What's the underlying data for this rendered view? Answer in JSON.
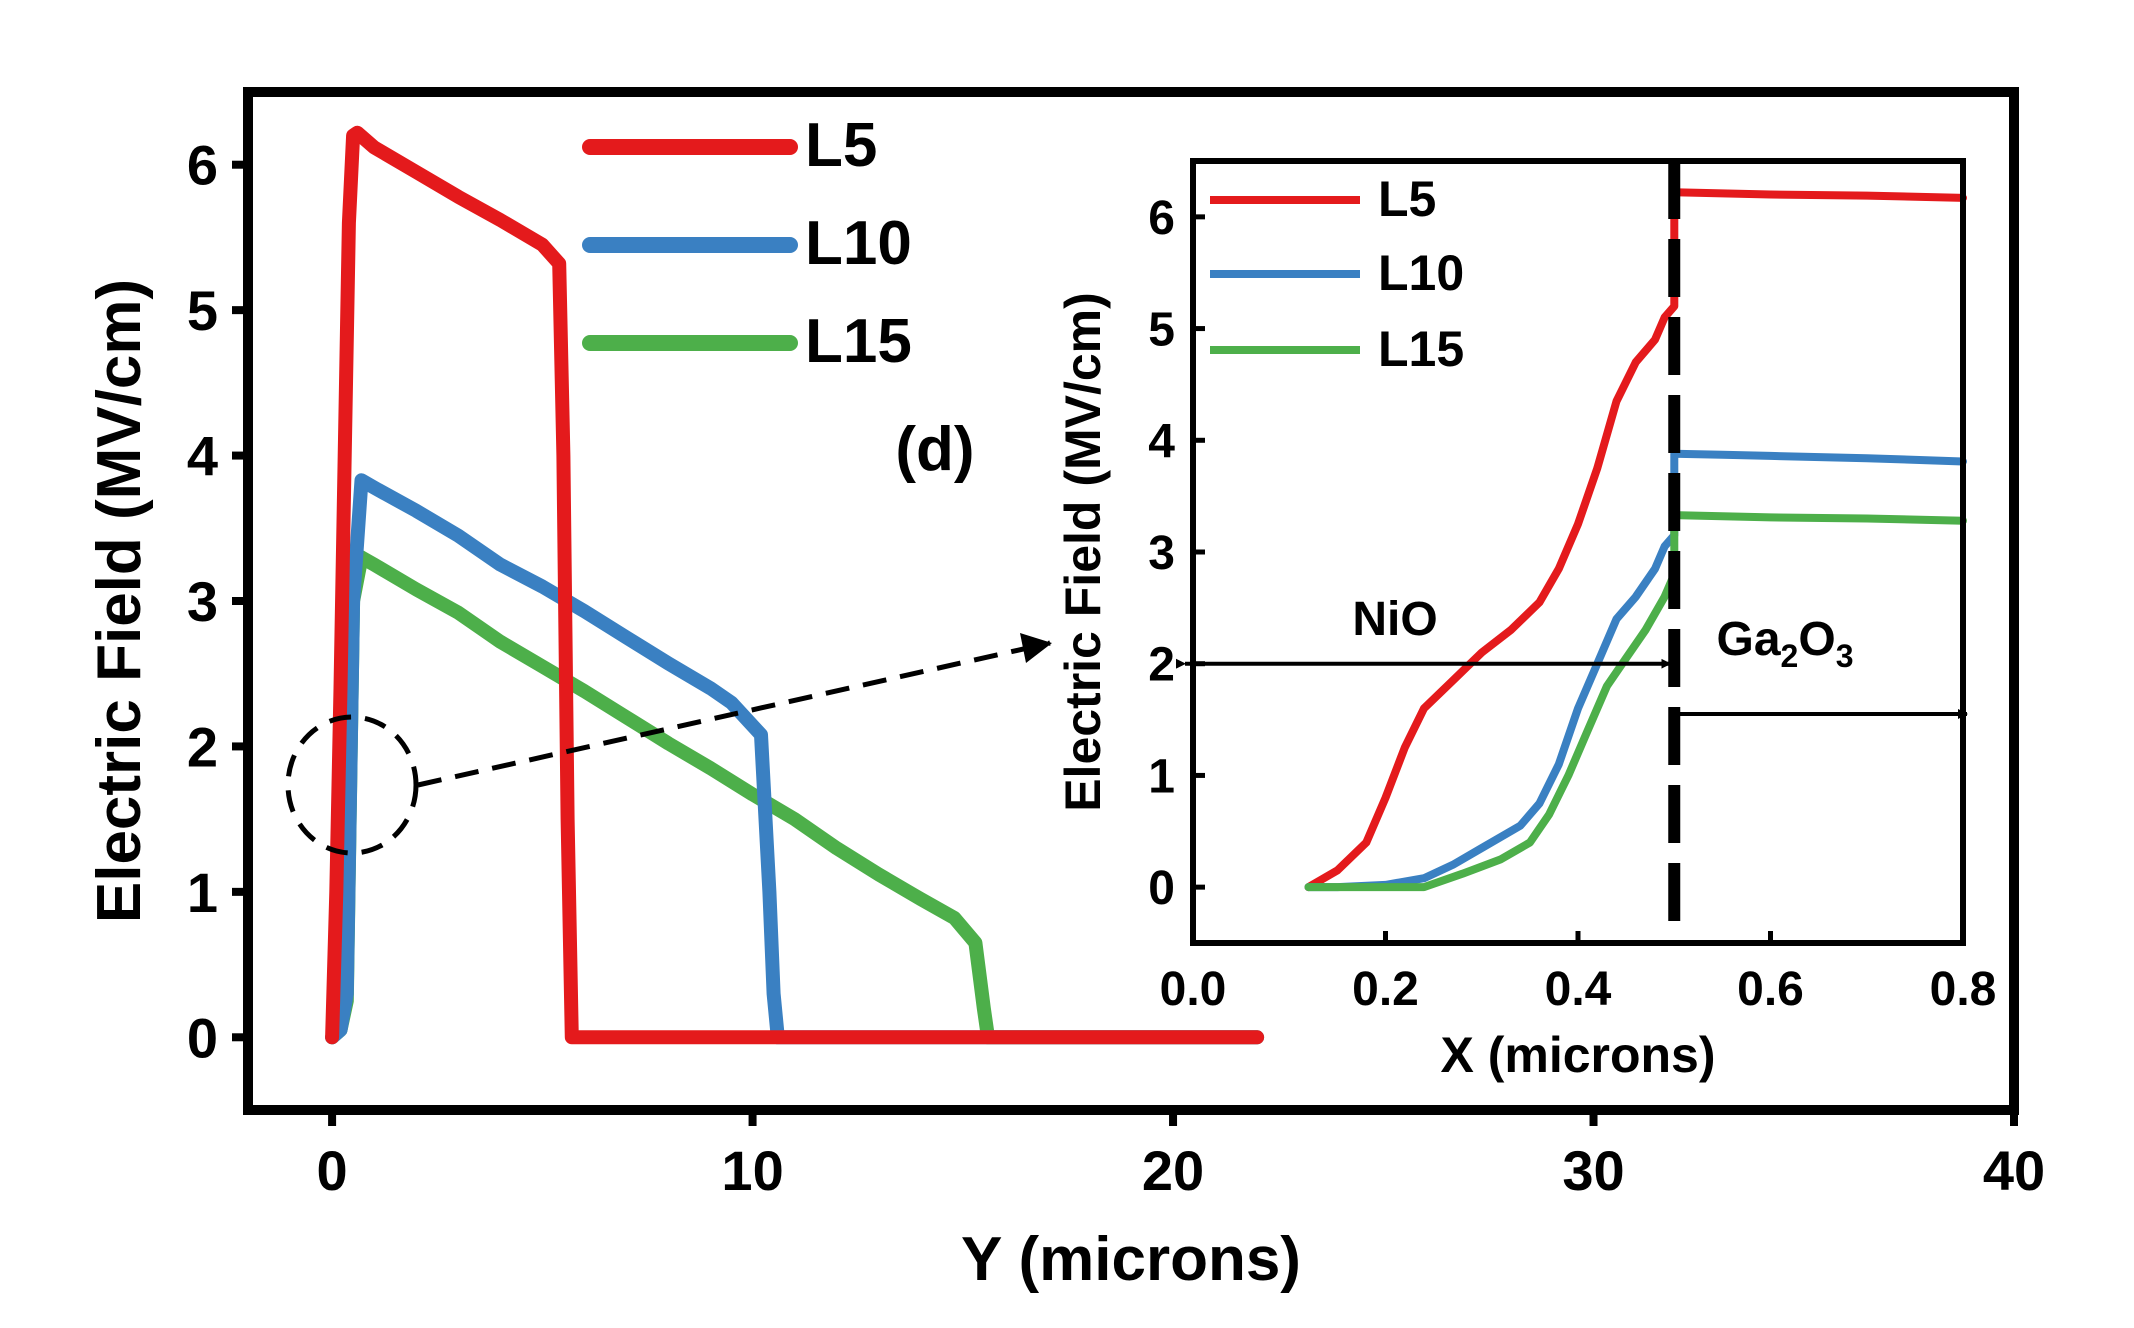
{
  "chart_data": [
    {
      "type": "line",
      "panel_label": "(d)",
      "xlabel": "Y (microns)",
      "ylabel": "Electric Field (MV/cm)",
      "xlim": [
        -2,
        40
      ],
      "ylim": [
        -0.5,
        6.5
      ],
      "xticks": [
        0,
        10,
        20,
        30,
        40
      ],
      "yticks": [
        0,
        1,
        2,
        3,
        4,
        5,
        6
      ],
      "legend_position": "top-center",
      "series": [
        {
          "name": "L5",
          "color": "#e41a1c",
          "x": [
            0.0,
            0.1,
            0.2,
            0.3,
            0.4,
            0.5,
            0.6,
            1.0,
            2.0,
            3.0,
            4.0,
            5.0,
            5.4,
            5.5,
            5.6,
            5.7,
            6.0,
            10.0,
            15.0,
            20.0,
            22.0
          ],
          "y": [
            0.0,
            1.0,
            2.4,
            4.0,
            5.6,
            6.2,
            6.22,
            6.12,
            5.95,
            5.78,
            5.62,
            5.45,
            5.32,
            4.0,
            1.5,
            0.0,
            0.0,
            0.0,
            0.0,
            0.0,
            0.0
          ]
        },
        {
          "name": "L10",
          "color": "#3a80c2",
          "x": [
            0.0,
            0.2,
            0.35,
            0.5,
            0.7,
            1.0,
            2.0,
            3.0,
            4.0,
            5.0,
            6.0,
            7.0,
            8.0,
            9.0,
            9.5,
            10.2,
            10.4,
            10.5,
            10.6,
            10.8,
            12.0,
            15.0,
            20.0,
            22.0
          ],
          "y": [
            0.0,
            0.05,
            0.3,
            3.0,
            3.83,
            3.78,
            3.62,
            3.45,
            3.25,
            3.1,
            2.93,
            2.75,
            2.57,
            2.4,
            2.3,
            2.08,
            1.0,
            0.3,
            0.0,
            0.0,
            0.0,
            0.0,
            0.0,
            0.0
          ]
        },
        {
          "name": "L15",
          "color": "#4daf4a",
          "x": [
            0.0,
            0.2,
            0.35,
            0.5,
            0.7,
            1.0,
            2.0,
            3.0,
            4.0,
            5.0,
            6.0,
            7.0,
            8.0,
            9.0,
            10.0,
            11.0,
            12.0,
            13.0,
            14.0,
            14.8,
            15.3,
            15.5,
            15.6,
            15.8,
            17.0,
            20.0,
            22.0
          ],
          "y": [
            0.0,
            0.05,
            0.25,
            3.0,
            3.3,
            3.25,
            3.08,
            2.92,
            2.72,
            2.55,
            2.38,
            2.2,
            2.02,
            1.85,
            1.67,
            1.5,
            1.3,
            1.12,
            0.95,
            0.82,
            0.65,
            0.2,
            0.0,
            0.0,
            0.0,
            0.0,
            0.0
          ]
        }
      ],
      "annotation": {
        "type": "dashed-ellipse-arrow",
        "points_to": "inset",
        "center": [
          0.5,
          1.75
        ]
      }
    },
    {
      "type": "line",
      "role": "inset",
      "xlabel": "X (microns)",
      "ylabel": "Electric Field (MV/cm)",
      "xlim": [
        0.0,
        0.8
      ],
      "ylim": [
        -0.5,
        6.5
      ],
      "xticks": [
        "0.0",
        "0.2",
        "0.4",
        "0.6",
        "0.8"
      ],
      "yticks": [
        0,
        1,
        2,
        3,
        4,
        5,
        6
      ],
      "legend_position": "top-left",
      "interface_x": 0.5,
      "region_labels": [
        {
          "text": "NiO",
          "span": [
            0.0,
            0.5
          ],
          "y": 2.0
        },
        {
          "text_main": "Ga",
          "sub1": "2",
          "text_mid": "O",
          "sub2": "3",
          "span": [
            0.5,
            0.8
          ],
          "y": 1.55
        }
      ],
      "series": [
        {
          "name": "L5",
          "color": "#e41a1c",
          "x": [
            0.12,
            0.15,
            0.18,
            0.2,
            0.22,
            0.24,
            0.27,
            0.3,
            0.33,
            0.36,
            0.38,
            0.4,
            0.42,
            0.44,
            0.46,
            0.48,
            0.49,
            0.5,
            0.5,
            0.55,
            0.6,
            0.7,
            0.8
          ],
          "y": [
            0.0,
            0.15,
            0.4,
            0.8,
            1.25,
            1.6,
            1.85,
            2.1,
            2.3,
            2.55,
            2.85,
            3.25,
            3.75,
            4.35,
            4.7,
            4.9,
            5.1,
            5.2,
            6.22,
            6.21,
            6.2,
            6.19,
            6.17
          ]
        },
        {
          "name": "L10",
          "color": "#3a80c2",
          "x": [
            0.12,
            0.15,
            0.2,
            0.24,
            0.27,
            0.3,
            0.34,
            0.36,
            0.38,
            0.4,
            0.42,
            0.44,
            0.46,
            0.48,
            0.49,
            0.5,
            0.5,
            0.55,
            0.6,
            0.7,
            0.8
          ],
          "y": [
            0.0,
            0.0,
            0.02,
            0.08,
            0.2,
            0.35,
            0.55,
            0.75,
            1.1,
            1.6,
            2.0,
            2.4,
            2.6,
            2.85,
            3.05,
            3.15,
            3.88,
            3.87,
            3.86,
            3.84,
            3.81
          ]
        },
        {
          "name": "L15",
          "color": "#4daf4a",
          "x": [
            0.12,
            0.15,
            0.2,
            0.24,
            0.28,
            0.32,
            0.35,
            0.37,
            0.39,
            0.41,
            0.43,
            0.45,
            0.47,
            0.49,
            0.5,
            0.5,
            0.55,
            0.6,
            0.7,
            0.8
          ],
          "y": [
            0.0,
            0.0,
            0.0,
            0.0,
            0.12,
            0.25,
            0.4,
            0.65,
            1.0,
            1.4,
            1.8,
            2.05,
            2.3,
            2.6,
            2.8,
            3.33,
            3.32,
            3.31,
            3.3,
            3.28
          ]
        }
      ]
    }
  ]
}
